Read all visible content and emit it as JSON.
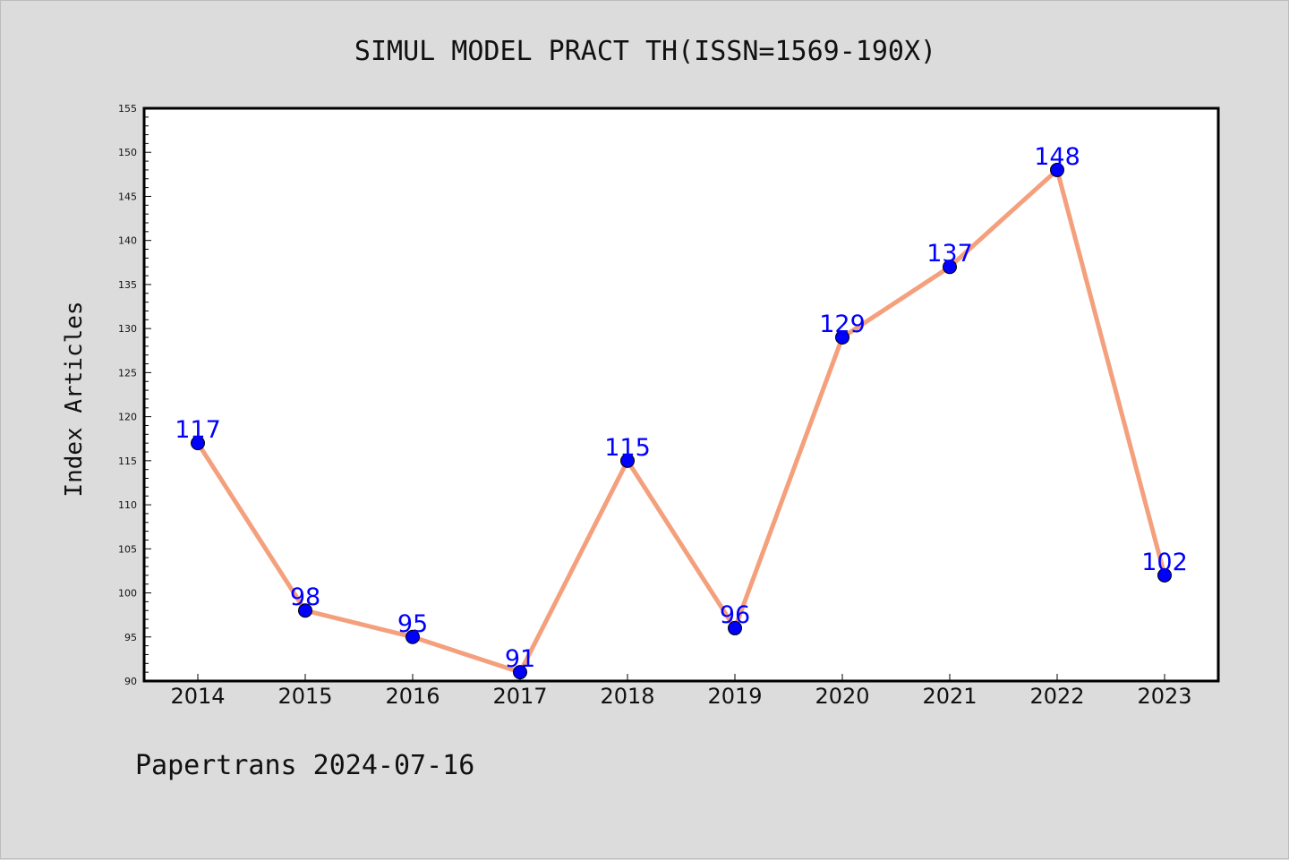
{
  "chart_data": {
    "type": "line",
    "title": "SIMUL MODEL PRACT TH(ISSN=1569-190X)",
    "xlabel": "",
    "ylabel": "Index Articles",
    "categories": [
      "2014",
      "2015",
      "2016",
      "2017",
      "2018",
      "2019",
      "2020",
      "2021",
      "2022",
      "2023"
    ],
    "series": [
      {
        "values": [
          117,
          98,
          95,
          91,
          115,
          96,
          129,
          137,
          148,
          102
        ]
      }
    ],
    "ylim": [
      90,
      155
    ],
    "yticks": [
      90,
      95,
      100,
      105,
      110,
      115,
      120,
      125,
      130,
      135,
      140,
      145,
      150,
      155
    ],
    "grid": false,
    "line_color": "#f4a07c",
    "marker_color": "#0000ff",
    "label_color": "#0000ff",
    "data_labels": true
  },
  "footer": {
    "text": "Papertrans 2024-07-16"
  }
}
